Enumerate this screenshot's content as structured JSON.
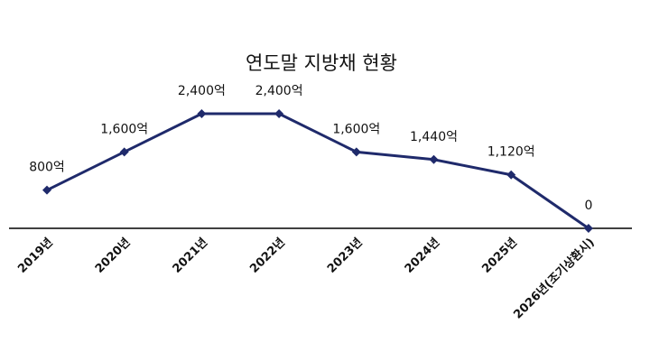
{
  "chart_data": {
    "type": "line",
    "title": "연도말 지방채 현황",
    "categories": [
      "2019년",
      "2020년",
      "2021년",
      "2022년",
      "2023년",
      "2024년",
      "2025년",
      "2026년(조기상환시)"
    ],
    "series": [
      {
        "values": [
          800,
          1600,
          2400,
          2400,
          1600,
          1440,
          1120,
          0
        ]
      }
    ],
    "data_labels": [
      "800억",
      "1,600억",
      "2,400억",
      "2,400억",
      "1,600억",
      "1,440억",
      "1,120억",
      "0"
    ],
    "ylim": [
      0,
      2400
    ],
    "grid": false,
    "colors": {
      "line": "#1f2a6b",
      "marker": "#1f2a6b",
      "axis": "#000000"
    }
  }
}
